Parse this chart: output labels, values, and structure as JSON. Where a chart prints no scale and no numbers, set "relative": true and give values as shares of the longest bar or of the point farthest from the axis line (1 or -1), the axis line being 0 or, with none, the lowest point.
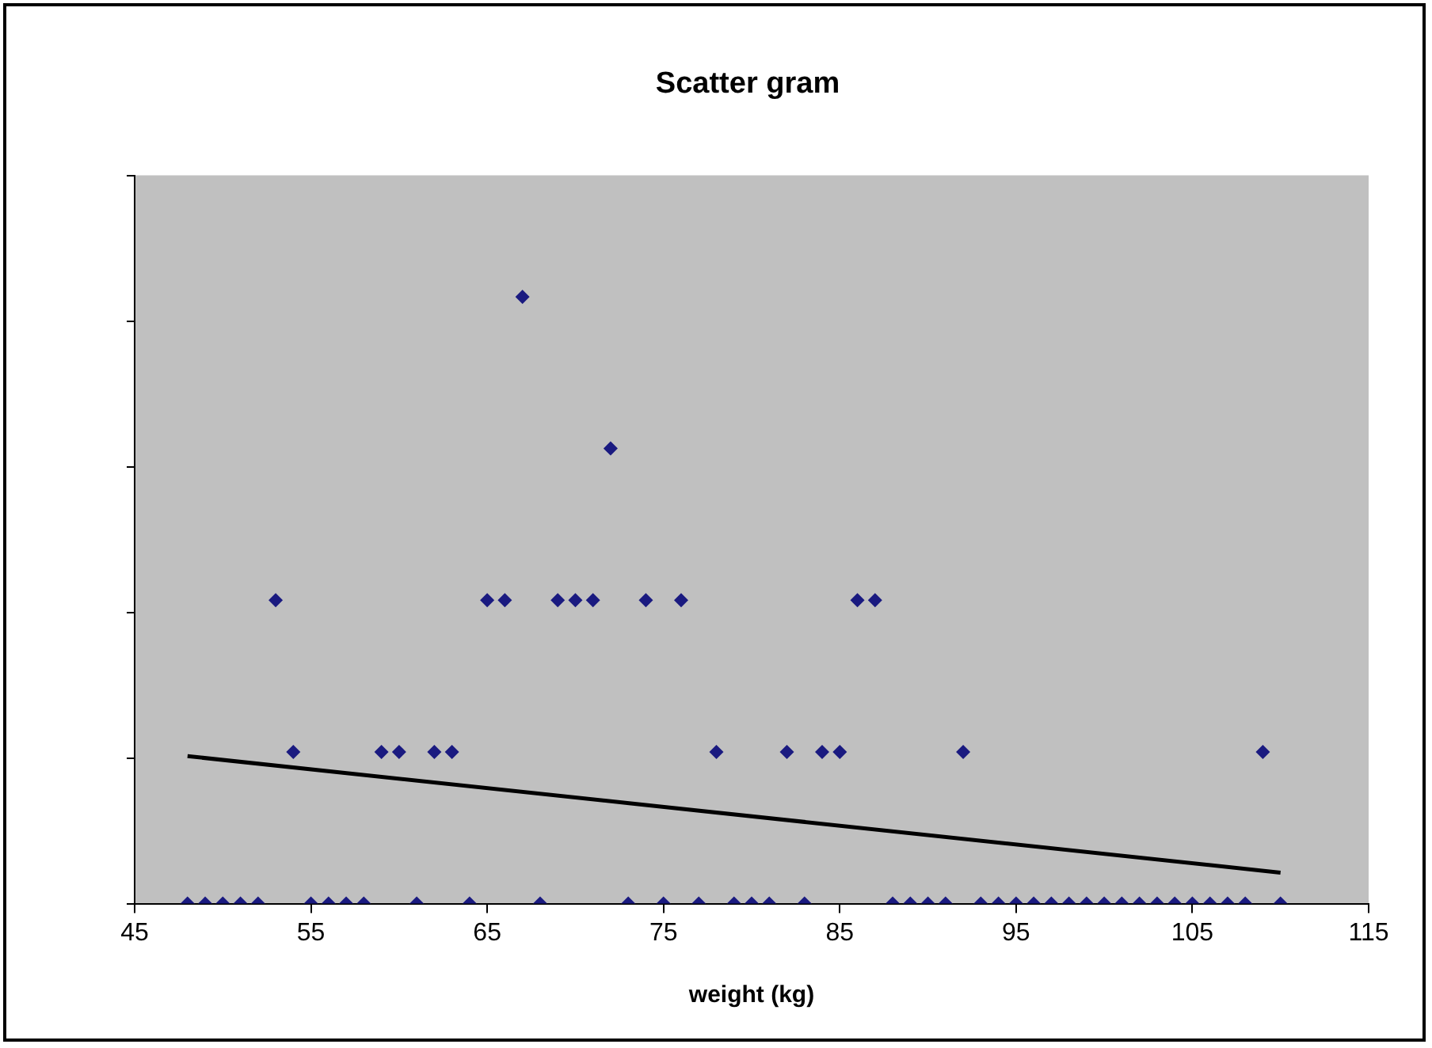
{
  "chart_data": {
    "type": "scatter",
    "title": "Scatter gram",
    "xlabel": "weight (kg)",
    "relative": true,
    "xlim": [
      45,
      115
    ],
    "xticks": [
      45,
      55,
      65,
      75,
      85,
      95,
      105,
      115
    ],
    "grid": false,
    "legend": false,
    "series": [
      {
        "color": "#1a1a80",
        "marker": "diamond",
        "x": [
          48,
          49,
          50,
          51,
          52,
          55,
          56,
          57,
          58,
          61,
          64,
          68,
          73,
          75,
          77,
          79,
          80,
          81,
          83,
          88,
          89,
          90,
          91,
          93,
          94,
          95,
          96,
          97,
          98,
          99,
          100,
          101,
          102,
          103,
          104,
          105,
          106,
          107,
          108,
          110,
          54,
          59,
          60,
          62,
          63,
          78,
          82,
          84,
          85,
          92,
          109,
          53,
          65,
          66,
          69,
          70,
          71,
          74,
          76,
          86,
          87,
          72,
          67
        ],
        "values": [
          0,
          0,
          0,
          0,
          0,
          0,
          0,
          0,
          0,
          0,
          0,
          0,
          0,
          0,
          0,
          0,
          0,
          0,
          0,
          0,
          0,
          0,
          0,
          0,
          0,
          0,
          0,
          0,
          0,
          0,
          0,
          0,
          0,
          0,
          0,
          0,
          0,
          0,
          0,
          0,
          0.25,
          0.25,
          0.25,
          0.25,
          0.25,
          0.25,
          0.25,
          0.25,
          0.25,
          0.25,
          0.25,
          0.5,
          0.5,
          0.5,
          0.5,
          0.5,
          0.5,
          0.5,
          0.5,
          0.5,
          0.5,
          0.75,
          1
        ]
      },
      {
        "type": "line",
        "color": "#000000",
        "marker": "none",
        "line_style": "solid",
        "x": [
          48,
          110
        ],
        "values": [
          0.243,
          0.051
        ]
      }
    ]
  }
}
